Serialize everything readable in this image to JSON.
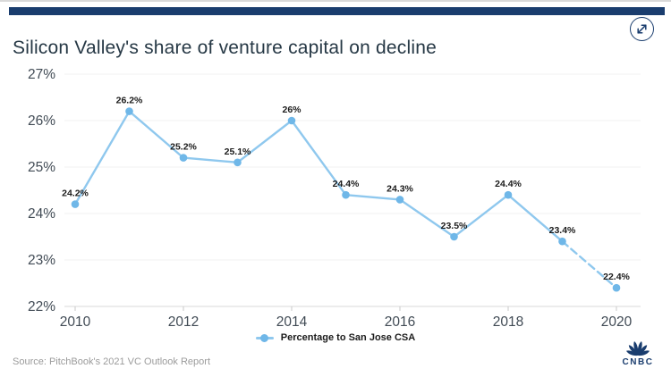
{
  "header": {
    "title": "Silicon Valley's share of venture capital on decline",
    "expand_icon": "expand-diagonal-arrows"
  },
  "colors": {
    "accent_bar": "#1a3d6e",
    "title_text": "#263845",
    "line": "#8fc8ee",
    "marker": "#6fb7e8",
    "grid": "#f0f0f0",
    "axis": "#dadada",
    "tick": "#c9c9c9",
    "tick_text": "#414b55",
    "label_text": "#1b1b1b",
    "source_text": "#9b9b9b",
    "logo": "#1a3d6e"
  },
  "chart_data": {
    "type": "line",
    "title": "Silicon Valley's share of venture capital on decline",
    "x": [
      2010,
      2011,
      2012,
      2013,
      2014,
      2015,
      2016,
      2017,
      2018,
      2019,
      2020
    ],
    "series": [
      {
        "name": "Percentage to San Jose CSA",
        "values": [
          24.2,
          26.2,
          25.2,
          25.1,
          26.0,
          24.4,
          24.3,
          23.5,
          24.4,
          23.4,
          22.4
        ],
        "point_labels": [
          "24.2%",
          "26.2%",
          "25.2%",
          "25.1%",
          "26%",
          "24.4%",
          "24.3%",
          "23.5%",
          "24.4%",
          "23.4%",
          "22.4%"
        ],
        "dashed_last_segment": true
      }
    ],
    "xlabel": "",
    "ylabel": "",
    "ylim": [
      22,
      27
    ],
    "ytick_values": [
      22,
      23,
      24,
      25,
      26,
      27
    ],
    "ytick_labels": [
      "22%",
      "23%",
      "24%",
      "25%",
      "26%",
      "27%"
    ],
    "xtick_values": [
      2010,
      2012,
      2014,
      2016,
      2018,
      2020
    ],
    "xtick_labels": [
      "2010",
      "2012",
      "2014",
      "2016",
      "2018",
      "2020"
    ],
    "grid": "horizontal",
    "legend_position": "bottom-center"
  },
  "legend": {
    "label": "Percentage to San Jose CSA"
  },
  "footer": {
    "source": "Source: PitchBook's 2021 VC Outlook Report",
    "logo_text": "CNBC"
  }
}
